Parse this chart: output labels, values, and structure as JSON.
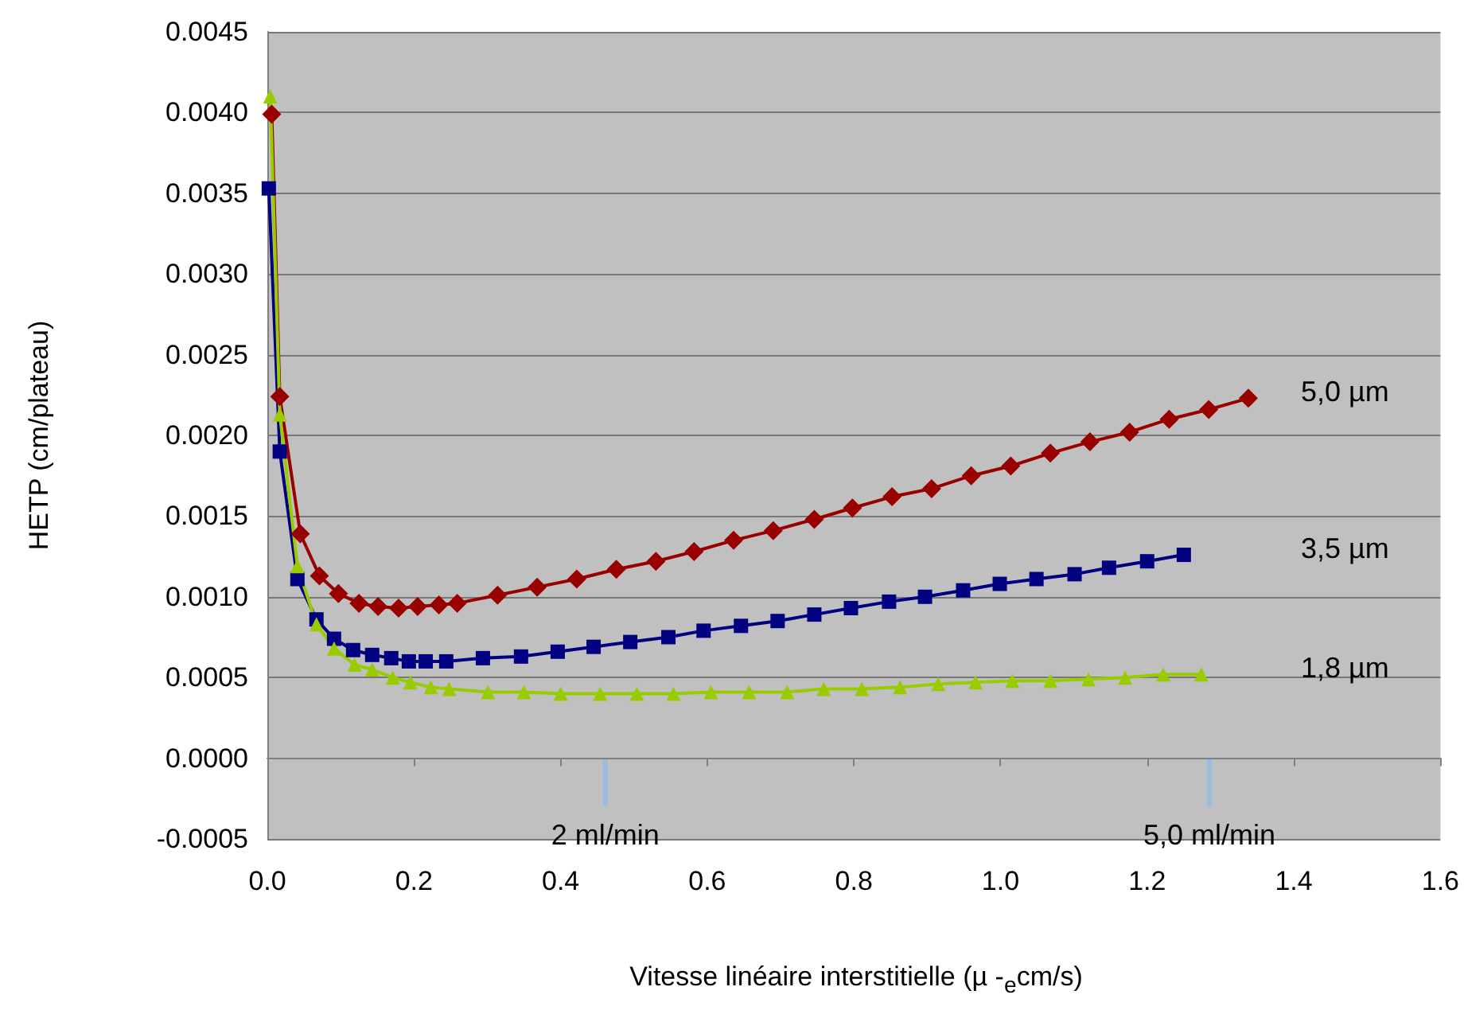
{
  "chart_data": {
    "type": "line",
    "xlabel": "Vitesse linéaire interstitielle (µ -$_{e}$cm/s)",
    "ylabel": "HETP (cm/plateau)",
    "xlim": [
      0,
      1.6
    ],
    "xticks": [
      {
        "value": 0,
        "label": "0.0"
      },
      {
        "value": 0.2,
        "label": "0.2"
      },
      {
        "value": 0.4,
        "label": "0.4"
      },
      {
        "value": 0.6,
        "label": "0.6"
      },
      {
        "value": 0.8,
        "label": "0.8"
      },
      {
        "value": 1.0,
        "label": "1.0"
      },
      {
        "value": 1.2,
        "label": "1.2"
      },
      {
        "value": 1.4,
        "label": "1.4"
      },
      {
        "value": 1.6,
        "label": "1.6"
      }
    ],
    "ylim": [
      -0.0005,
      0.0045
    ],
    "yticks": [
      {
        "value": -0.0005,
        "label": "-0.0005"
      },
      {
        "value": 0,
        "label": "0.0000"
      },
      {
        "value": 0.0005,
        "label": "0.0005"
      },
      {
        "value": 0.001,
        "label": "0.0010"
      },
      {
        "value": 0.0015,
        "label": "0.0015"
      },
      {
        "value": 0.002,
        "label": "0.0020"
      },
      {
        "value": 0.0025,
        "label": "0.0025"
      },
      {
        "value": 0.003,
        "label": "0.0030"
      },
      {
        "value": 0.0035,
        "label": "0.0035"
      },
      {
        "value": 0.004,
        "label": "0.0040"
      },
      {
        "value": 0.0045,
        "label": "0.0045"
      }
    ],
    "grid": "y",
    "legend": false,
    "line_style": "solid",
    "series": [
      {
        "name": "5,0 µm",
        "color": "#990000",
        "marker": "diamond",
        "x": [
          0.006,
          0.017,
          0.045,
          0.071,
          0.097,
          0.125,
          0.151,
          0.179,
          0.205,
          0.234,
          0.259,
          0.314,
          0.368,
          0.422,
          0.476,
          0.53,
          0.582,
          0.636,
          0.69,
          0.746,
          0.798,
          0.852,
          0.906,
          0.96,
          1.014,
          1.068,
          1.122,
          1.176,
          1.23,
          1.284,
          1.338
        ],
        "values": [
          0.00399,
          0.00224,
          0.00139,
          0.00113,
          0.00102,
          0.00096,
          0.00094,
          0.00093,
          0.00094,
          0.00095,
          0.00096,
          0.00101,
          0.00106,
          0.00111,
          0.00117,
          0.00122,
          0.00128,
          0.00135,
          0.00141,
          0.00148,
          0.00155,
          0.00162,
          0.00167,
          0.00175,
          0.00181,
          0.00189,
          0.00196,
          0.00202,
          0.0021,
          0.00216,
          0.00223
        ]
      },
      {
        "name": "3,5 µm",
        "color": "#000080",
        "marker": "square",
        "x": [
          0.002,
          0.017,
          0.041,
          0.067,
          0.091,
          0.117,
          0.143,
          0.169,
          0.193,
          0.216,
          0.244,
          0.294,
          0.346,
          0.396,
          0.445,
          0.495,
          0.547,
          0.595,
          0.646,
          0.696,
          0.746,
          0.796,
          0.848,
          0.897,
          0.949,
          0.999,
          1.049,
          1.101,
          1.148,
          1.2,
          1.25
        ],
        "values": [
          0.00353,
          0.0019,
          0.00111,
          0.00086,
          0.00074,
          0.00067,
          0.00064,
          0.00062,
          0.0006,
          0.0006,
          0.0006,
          0.00062,
          0.00063,
          0.00066,
          0.00069,
          0.00072,
          0.00075,
          0.00079,
          0.00082,
          0.00085,
          0.00089,
          0.00093,
          0.00097,
          0.001,
          0.00104,
          0.00108,
          0.00111,
          0.00114,
          0.00118,
          0.00122,
          0.00126
        ]
      },
      {
        "name": "1,8 µm",
        "color": "#99cc00",
        "marker": "triangle",
        "x": [
          0.004,
          0.017,
          0.041,
          0.067,
          0.091,
          0.119,
          0.143,
          0.171,
          0.195,
          0.223,
          0.248,
          0.301,
          0.35,
          0.4,
          0.454,
          0.504,
          0.554,
          0.605,
          0.657,
          0.709,
          0.759,
          0.811,
          0.863,
          0.915,
          0.966,
          1.016,
          1.068,
          1.12,
          1.17,
          1.222,
          1.274
        ],
        "values": [
          0.0041,
          0.00213,
          0.00119,
          0.00083,
          0.00068,
          0.00058,
          0.00055,
          0.0005,
          0.00047,
          0.00044,
          0.00043,
          0.00041,
          0.00041,
          0.0004,
          0.0004,
          0.0004,
          0.0004,
          0.00041,
          0.00041,
          0.00041,
          0.00043,
          0.00043,
          0.00044,
          0.00046,
          0.00047,
          0.00048,
          0.00048,
          0.00049,
          0.0005,
          0.00052,
          0.00052
        ]
      }
    ],
    "annotations": [
      "2 ml/min",
      "5,0 ml/min"
    ]
  }
}
